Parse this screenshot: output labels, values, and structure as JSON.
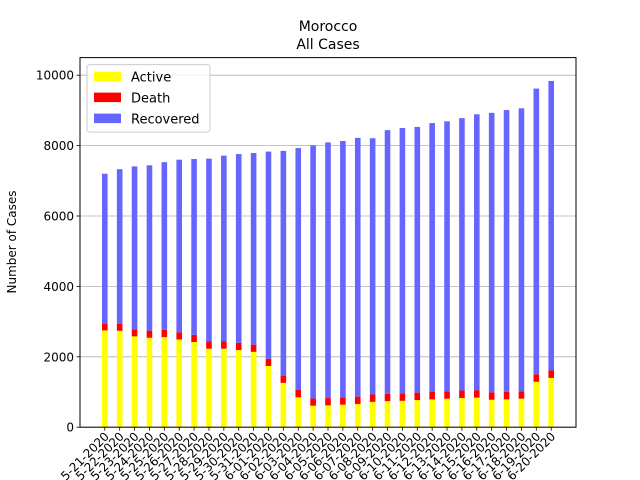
{
  "chart_data": {
    "type": "bar",
    "stacked": true,
    "title": "Morocco",
    "subtitle": "All Cases",
    "xlabel": "",
    "ylabel": "Number of Cases",
    "ylim": [
      0,
      10500
    ],
    "yticks": [
      0,
      2000,
      4000,
      6000,
      8000,
      10000
    ],
    "grid": "horizontal",
    "legend_position": "top-left",
    "categories": [
      "5-21-2020",
      "5-22-2020",
      "5-23-2020",
      "5-24-2020",
      "5-25-2020",
      "5-26-2020",
      "5-27-2020",
      "5-28-2020",
      "5-29-2020",
      "5-30-2020",
      "5-31-2020",
      "6-01-2020",
      "6-02-2020",
      "6-03-2020",
      "6-04-2020",
      "6-05-2020",
      "6-06-2020",
      "6-07-2020",
      "6-08-2020",
      "6-09-2020",
      "6-10-2020",
      "6-11-2020",
      "6-12-2020",
      "6-13-2020",
      "6-14-2020",
      "6-15-2020",
      "6-16-2020",
      "6-17-2020",
      "6-18-2020",
      "6-19-2020",
      "6-20-2020"
    ],
    "series": [
      {
        "name": "Active",
        "color": "#ffff00",
        "values": [
          2750,
          2740,
          2580,
          2540,
          2560,
          2490,
          2420,
          2230,
          2230,
          2190,
          2140,
          1740,
          1260,
          850,
          610,
          620,
          640,
          660,
          720,
          740,
          750,
          770,
          790,
          810,
          830,
          840,
          780,
          790,
          810,
          1290,
          1400
        ]
      },
      {
        "name": "Death",
        "color": "#ff0000",
        "values": [
          200,
          202,
          202,
          203,
          204,
          204,
          205,
          205,
          205,
          205,
          205,
          206,
          206,
          206,
          207,
          208,
          208,
          208,
          210,
          211,
          212,
          212,
          212,
          212,
          212,
          212,
          212,
          212,
          212,
          212,
          213
        ]
      },
      {
        "name": "Recovered",
        "color": "#6666ff",
        "values": [
          4250,
          4388,
          4628,
          4697,
          4766,
          4906,
          4995,
          5195,
          5280,
          5365,
          5445,
          5884,
          6384,
          6874,
          7193,
          7262,
          7282,
          7352,
          7280,
          7489,
          7538,
          7548,
          7638,
          7668,
          7738,
          7838,
          7938,
          8008,
          8038,
          8118,
          8223
        ]
      }
    ]
  }
}
